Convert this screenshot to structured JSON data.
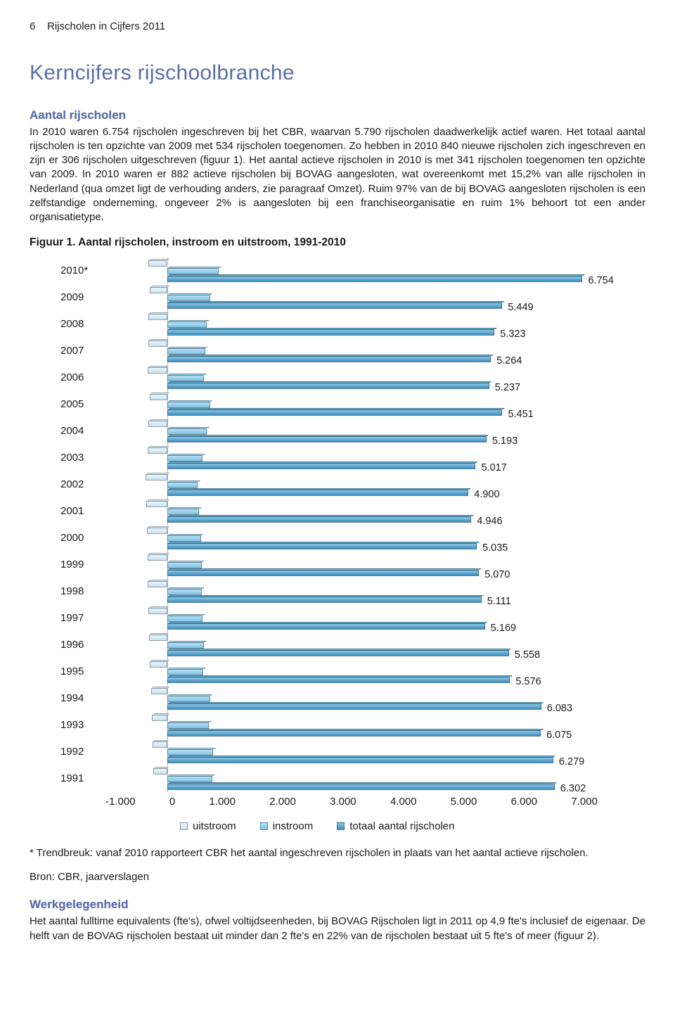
{
  "header": {
    "page_num": "6",
    "doc_title": "Rijscholen in Cijfers 2011"
  },
  "section_title": "Kerncijfers rijschoolbranche",
  "aantal": {
    "heading": "Aantal rijscholen",
    "body": "In 2010 waren 6.754 rijscholen ingeschreven bij het CBR, waarvan 5.790 rijscholen daadwerkelijk actief waren. Het totaal aantal rijscholen is ten opzichte van 2009 met 534 rijscholen toegenomen. Zo hebben in 2010 840 nieuwe rijscholen zich ingeschreven en zijn er 306 rijscholen uitgeschreven (figuur 1). Het aantal actieve rijscholen in 2010 is met 341 rijscholen toegenomen ten opzichte van 2009. In 2010 waren er 882 actieve rijscholen bij BOVAG aangesloten, wat overeenkomt met 15,2% van alle rijscholen in Nederland (qua omzet ligt de verhouding anders, zie paragraaf Omzet). Ruim 97% van de bij BOVAG aangesloten rijscholen is een zelfstandige onderneming, ongeveer 2% is aangesloten bij een franchiseorganisatie en ruim 1% behoort tot een ander organisatietype."
  },
  "figure1": {
    "caption": "Figuur 1.  Aantal rijscholen, instroom en uitstroom, 1991-2010",
    "x_min": -1000,
    "x_max": 7000,
    "x_ticks": [
      "-1.000",
      "0",
      "1.000",
      "2.000",
      "3.000",
      "4.000",
      "5.000",
      "6.000",
      "7.000"
    ],
    "legend": {
      "uitstroom": "uitstroom",
      "instroom": "instroom",
      "totaal": "totaal aantal rijscholen"
    },
    "colors": {
      "uitstroom": "#c8e4f4",
      "instroom": "#7fc3e6",
      "totaal": "#3d8fc1",
      "grid": "#b7b7b7",
      "background": "#ffffff"
    },
    "rows": [
      {
        "year": "2010*",
        "uit": -306,
        "in": 840,
        "totaal": 6754,
        "label": "6.754"
      },
      {
        "year": "2009",
        "uit": -280,
        "in": 700,
        "totaal": 5449,
        "label": "5.449"
      },
      {
        "year": "2008",
        "uit": -300,
        "in": 650,
        "totaal": 5323,
        "label": "5.323"
      },
      {
        "year": "2007",
        "uit": -300,
        "in": 620,
        "totaal": 5264,
        "label": "5.264"
      },
      {
        "year": "2006",
        "uit": -310,
        "in": 600,
        "totaal": 5237,
        "label": "5.237"
      },
      {
        "year": "2005",
        "uit": -280,
        "in": 700,
        "totaal": 5451,
        "label": "5.451"
      },
      {
        "year": "2004",
        "uit": -300,
        "in": 650,
        "totaal": 5193,
        "label": "5.193"
      },
      {
        "year": "2003",
        "uit": -320,
        "in": 580,
        "totaal": 5017,
        "label": "5.017"
      },
      {
        "year": "2002",
        "uit": -350,
        "in": 500,
        "totaal": 4900,
        "label": "4.900"
      },
      {
        "year": "2001",
        "uit": -340,
        "in": 520,
        "totaal": 4946,
        "label": "4.946"
      },
      {
        "year": "2000",
        "uit": -330,
        "in": 550,
        "totaal": 5035,
        "label": "5.035"
      },
      {
        "year": "1999",
        "uit": -320,
        "in": 560,
        "totaal": 5070,
        "label": "5.070"
      },
      {
        "year": "1998",
        "uit": -310,
        "in": 570,
        "totaal": 5111,
        "label": "5.111"
      },
      {
        "year": "1997",
        "uit": -300,
        "in": 580,
        "totaal": 5169,
        "label": "5.169"
      },
      {
        "year": "1996",
        "uit": -290,
        "in": 600,
        "totaal": 5558,
        "label": "5.558"
      },
      {
        "year": "1995",
        "uit": -280,
        "in": 590,
        "totaal": 5576,
        "label": "5.576"
      },
      {
        "year": "1994",
        "uit": -260,
        "in": 700,
        "totaal": 6083,
        "label": "6.083"
      },
      {
        "year": "1993",
        "uit": -250,
        "in": 680,
        "totaal": 6075,
        "label": "6.075"
      },
      {
        "year": "1992",
        "uit": -230,
        "in": 750,
        "totaal": 6279,
        "label": "6.279"
      },
      {
        "year": "1991",
        "uit": -220,
        "in": 740,
        "totaal": 6302,
        "label": "6.302"
      }
    ]
  },
  "footnote": "* Trendbreuk: vanaf 2010 rapporteert CBR het aantal ingeschreven rijscholen in plaats van het aantal actieve rijscholen.",
  "source": "Bron: CBR, jaarverslagen",
  "werk": {
    "heading": "Werkgelegenheid",
    "body": "Het aantal fulltime equivalents (fte's), ofwel voltijdseenheden, bij BOVAG Rijscholen ligt in 2011 op 4,9 fte's inclusief de eigenaar. De helft van de BOVAG rijscholen bestaat uit minder dan 2 fte's en 22% van de rijscholen bestaat uit 5 fte's of meer (figuur 2)."
  }
}
